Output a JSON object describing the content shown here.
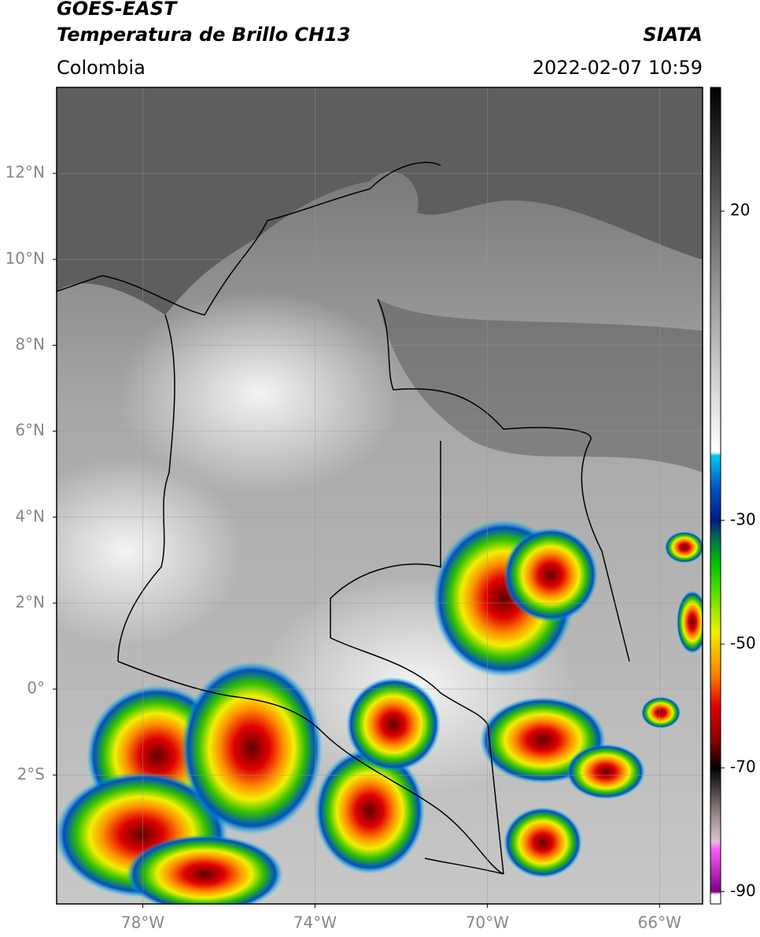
{
  "header": {
    "line1": "GOES-EAST",
    "line2": "Temperatura de Brillo CH13",
    "source": "SIATA",
    "region": "Colombia",
    "timestamp": "2022-02-07 10:59"
  },
  "map": {
    "xlim": [
      -80,
      -65
    ],
    "ylim": [
      -5,
      14
    ],
    "xticks": [
      {
        "value": -78,
        "label": "78°W"
      },
      {
        "value": -74,
        "label": "74°W"
      },
      {
        "value": -70,
        "label": "70°W"
      },
      {
        "value": -66,
        "label": "66°W"
      }
    ],
    "yticks": [
      {
        "value": -2,
        "label": "2°S"
      },
      {
        "value": 0,
        "label": "0°"
      },
      {
        "value": 2,
        "label": "2°N"
      },
      {
        "value": 4,
        "label": "4°N"
      },
      {
        "value": 6,
        "label": "6°N"
      },
      {
        "value": 8,
        "label": "8°N"
      },
      {
        "value": 10,
        "label": "10°N"
      },
      {
        "value": 12,
        "label": "12°N"
      }
    ],
    "grid": true
  },
  "colorbar": {
    "lim": [
      -92,
      40
    ],
    "ticks": [
      20,
      -30,
      -50,
      -70,
      -90
    ],
    "stops": [
      {
        "value": 40,
        "color": "#000000"
      },
      {
        "value": 20,
        "color": "#606060"
      },
      {
        "value": 0,
        "color": "#b4b4b4"
      },
      {
        "value": -19,
        "color": "#ffffff"
      },
      {
        "value": -19.5,
        "color": "#00c8f0"
      },
      {
        "value": -25,
        "color": "#0050c0"
      },
      {
        "value": -30,
        "color": "#001a80"
      },
      {
        "value": -33,
        "color": "#007050"
      },
      {
        "value": -37,
        "color": "#00c000"
      },
      {
        "value": -42,
        "color": "#60e000"
      },
      {
        "value": -48,
        "color": "#f0f000"
      },
      {
        "value": -55,
        "color": "#ff8000"
      },
      {
        "value": -60,
        "color": "#e00000"
      },
      {
        "value": -66,
        "color": "#800000"
      },
      {
        "value": -70,
        "color": "#000000"
      },
      {
        "value": -78,
        "color": "#a09090"
      },
      {
        "value": -82,
        "color": "#e0c0d0"
      },
      {
        "value": -83,
        "color": "#ff60ff"
      },
      {
        "value": -90,
        "color": "#800080"
      },
      {
        "value": -90.5,
        "color": "#ffffff"
      },
      {
        "value": -92,
        "color": "#ffffff"
      }
    ]
  }
}
